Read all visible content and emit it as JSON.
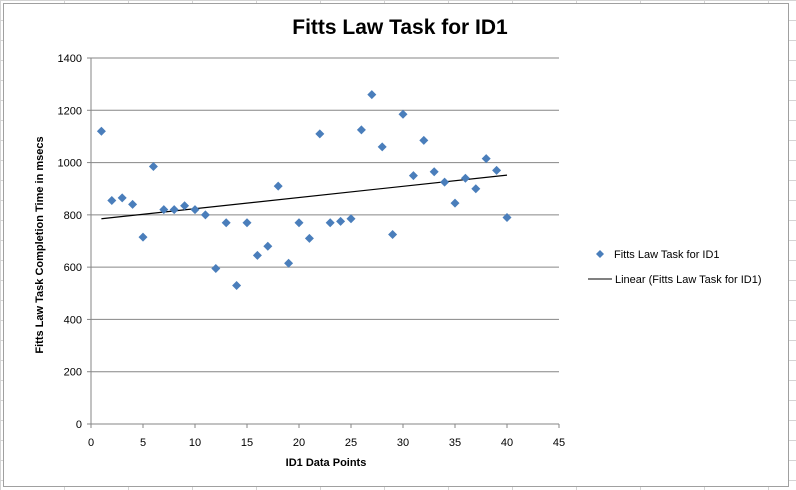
{
  "chart_data": {
    "type": "scatter",
    "title": "Fitts Law Task for ID1",
    "xlabel": "ID1 Data Points",
    "ylabel": "Fitts Law Task Completion Time in msecs",
    "xlim": [
      0,
      45
    ],
    "ylim": [
      0,
      1400
    ],
    "xticks": [
      0,
      5,
      10,
      15,
      20,
      25,
      30,
      35,
      40,
      45
    ],
    "yticks": [
      0,
      200,
      400,
      600,
      800,
      1000,
      1200,
      1400
    ],
    "grid": "horizontal major gridlines",
    "legend_position": "right",
    "series": [
      {
        "name": "Fitts Law Task for ID1",
        "marker": "diamond",
        "color": "#4a7ebb",
        "x": [
          1,
          2,
          3,
          4,
          5,
          6,
          7,
          8,
          9,
          10,
          11,
          12,
          13,
          14,
          15,
          16,
          17,
          18,
          19,
          20,
          21,
          22,
          23,
          24,
          25,
          26,
          27,
          28,
          29,
          30,
          31,
          32,
          33,
          34,
          35,
          36,
          37,
          38,
          39,
          40
        ],
        "y": [
          1120,
          855,
          865,
          840,
          715,
          985,
          820,
          820,
          835,
          820,
          800,
          595,
          770,
          530,
          770,
          645,
          680,
          910,
          615,
          770,
          710,
          1110,
          770,
          775,
          785,
          1125,
          1260,
          1060,
          725,
          1185,
          950,
          1085,
          965,
          925,
          845,
          940,
          900,
          1015,
          970,
          790
        ]
      }
    ],
    "trendline": {
      "name": "Linear (Fitts Law Task for ID1)",
      "type": "linear",
      "color": "#000000",
      "x": [
        1,
        40
      ],
      "y": [
        785,
        952
      ]
    }
  }
}
